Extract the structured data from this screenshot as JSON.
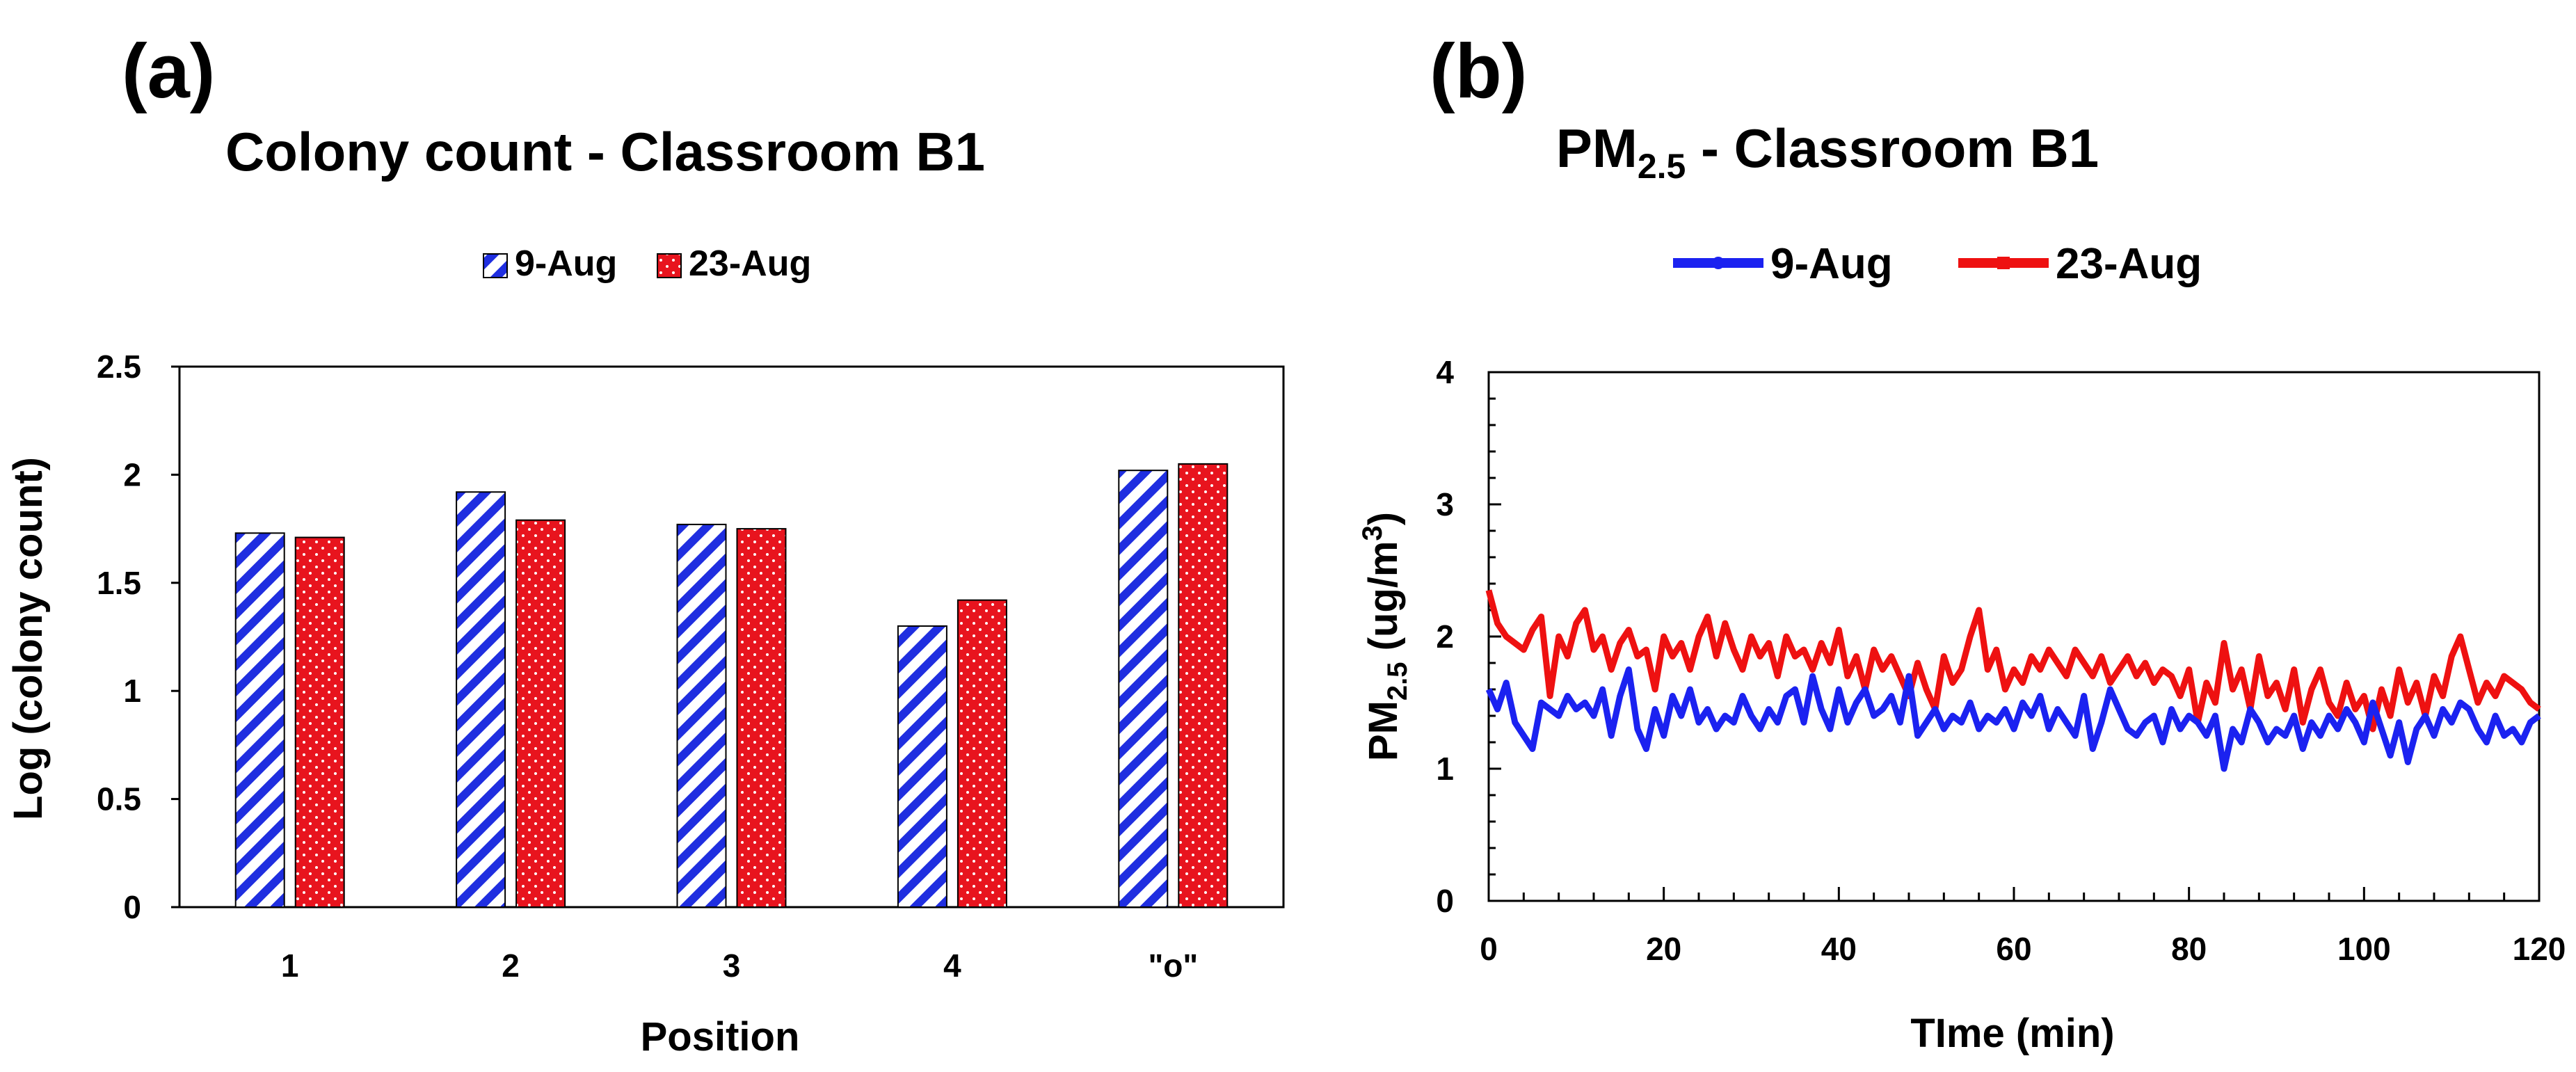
{
  "panels": {
    "a": {
      "label": "(a)",
      "chart_data": {
        "type": "bar",
        "title": "Colony count - Classroom B1",
        "xlabel": "Position",
        "ylabel": "Log (colony count)",
        "categories": [
          "1",
          "2",
          "3",
          "4",
          "\"o\""
        ],
        "ylim": [
          0,
          2.5
        ],
        "yticks": [
          "0",
          "0.5",
          "1",
          "1.5",
          "2",
          "2.5"
        ],
        "legend_position": "top-center",
        "series": [
          {
            "name": "9-Aug",
            "pattern": "blue-diagonal-stripes",
            "color": "#1f2ee0",
            "values": [
              1.73,
              1.92,
              1.77,
              1.3,
              2.02
            ]
          },
          {
            "name": "23-Aug",
            "pattern": "red-dotted",
            "color": "#e8141e",
            "values": [
              1.71,
              1.79,
              1.75,
              1.42,
              2.05
            ]
          }
        ]
      }
    },
    "b": {
      "label": "(b)",
      "chart_data": {
        "type": "line",
        "title_main": "PM",
        "title_sub": "2.5",
        "title_rest": " - Classroom B1",
        "xlabel": "TIme (min)",
        "ylabel_main": "PM",
        "ylabel_sub": "2.5",
        "ylabel_unit": " (ug/m",
        "ylabel_sup": "3",
        "ylabel_close": ")",
        "xlim": [
          0,
          120
        ],
        "ylim": [
          0,
          4
        ],
        "xticks": [
          "0",
          "20",
          "40",
          "60",
          "80",
          "100",
          "120"
        ],
        "yticks": [
          "0",
          "1",
          "2",
          "3",
          "4"
        ],
        "legend_position": "top-center",
        "series": [
          {
            "name": "9-Aug",
            "color": "#1b22f0",
            "x": [
              0,
              1,
              2,
              3,
              4,
              5,
              6,
              7,
              8,
              9,
              10,
              11,
              12,
              13,
              14,
              15,
              16,
              17,
              18,
              19,
              20,
              21,
              22,
              23,
              24,
              25,
              26,
              27,
              28,
              29,
              30,
              31,
              32,
              33,
              34,
              35,
              36,
              37,
              38,
              39,
              40,
              41,
              42,
              43,
              44,
              45,
              46,
              47,
              48,
              49,
              50,
              51,
              52,
              53,
              54,
              55,
              56,
              57,
              58,
              59,
              60,
              61,
              62,
              63,
              64,
              65,
              66,
              67,
              68,
              69,
              70,
              71,
              72,
              73,
              74,
              75,
              76,
              77,
              78,
              79,
              80,
              81,
              82,
              83,
              84,
              85,
              86,
              87,
              88,
              89,
              90,
              91,
              92,
              93,
              94,
              95,
              96,
              97,
              98,
              99,
              100,
              101,
              102,
              103,
              104,
              105,
              106,
              107,
              108,
              109,
              110,
              111,
              112,
              113,
              114,
              115,
              116,
              117,
              118,
              119,
              120
            ],
            "y": [
              1.6,
              1.45,
              1.65,
              1.35,
              1.25,
              1.15,
              1.5,
              1.45,
              1.4,
              1.55,
              1.45,
              1.5,
              1.4,
              1.6,
              1.25,
              1.55,
              1.75,
              1.3,
              1.15,
              1.45,
              1.25,
              1.55,
              1.4,
              1.6,
              1.35,
              1.45,
              1.3,
              1.4,
              1.35,
              1.55,
              1.4,
              1.3,
              1.45,
              1.35,
              1.55,
              1.6,
              1.35,
              1.7,
              1.45,
              1.3,
              1.6,
              1.35,
              1.5,
              1.6,
              1.4,
              1.45,
              1.55,
              1.35,
              1.7,
              1.25,
              1.35,
              1.45,
              1.3,
              1.4,
              1.35,
              1.5,
              1.3,
              1.4,
              1.35,
              1.45,
              1.3,
              1.5,
              1.4,
              1.55,
              1.3,
              1.45,
              1.35,
              1.25,
              1.55,
              1.15,
              1.35,
              1.6,
              1.45,
              1.3,
              1.25,
              1.35,
              1.4,
              1.2,
              1.45,
              1.3,
              1.4,
              1.35,
              1.25,
              1.4,
              1.0,
              1.3,
              1.2,
              1.45,
              1.35,
              1.2,
              1.3,
              1.25,
              1.4,
              1.15,
              1.35,
              1.25,
              1.4,
              1.3,
              1.45,
              1.35,
              1.2,
              1.5,
              1.3,
              1.1,
              1.35,
              1.05,
              1.3,
              1.4,
              1.25,
              1.45,
              1.35,
              1.5,
              1.45,
              1.3,
              1.2,
              1.4,
              1.25,
              1.3,
              1.2,
              1.35,
              1.4
            ]
          },
          {
            "name": "23-Aug",
            "color": "#ee1111",
            "x": [
              0,
              1,
              2,
              3,
              4,
              5,
              6,
              7,
              8,
              9,
              10,
              11,
              12,
              13,
              14,
              15,
              16,
              17,
              18,
              19,
              20,
              21,
              22,
              23,
              24,
              25,
              26,
              27,
              28,
              29,
              30,
              31,
              32,
              33,
              34,
              35,
              36,
              37,
              38,
              39,
              40,
              41,
              42,
              43,
              44,
              45,
              46,
              47,
              48,
              49,
              50,
              51,
              52,
              53,
              54,
              55,
              56,
              57,
              58,
              59,
              60,
              61,
              62,
              63,
              64,
              65,
              66,
              67,
              68,
              69,
              70,
              71,
              72,
              73,
              74,
              75,
              76,
              77,
              78,
              79,
              80,
              81,
              82,
              83,
              84,
              85,
              86,
              87,
              88,
              89,
              90,
              91,
              92,
              93,
              94,
              95,
              96,
              97,
              98,
              99,
              100,
              101,
              102,
              103,
              104,
              105,
              106,
              107,
              108,
              109,
              110,
              111,
              112,
              113,
              114,
              115,
              116,
              117,
              118,
              119,
              120
            ],
            "y": [
              2.35,
              2.1,
              2.0,
              1.95,
              1.9,
              2.05,
              2.15,
              1.55,
              2.0,
              1.85,
              2.1,
              2.2,
              1.9,
              2.0,
              1.75,
              1.95,
              2.05,
              1.85,
              1.9,
              1.6,
              2.0,
              1.85,
              1.95,
              1.75,
              2.0,
              2.15,
              1.85,
              2.1,
              1.9,
              1.75,
              2.0,
              1.85,
              1.95,
              1.7,
              2.0,
              1.85,
              1.9,
              1.75,
              1.95,
              1.8,
              2.05,
              1.7,
              1.85,
              1.6,
              1.9,
              1.75,
              1.85,
              1.7,
              1.55,
              1.8,
              1.6,
              1.45,
              1.85,
              1.65,
              1.75,
              2.0,
              2.2,
              1.75,
              1.9,
              1.6,
              1.75,
              1.65,
              1.85,
              1.75,
              1.9,
              1.8,
              1.7,
              1.9,
              1.8,
              1.7,
              1.85,
              1.65,
              1.75,
              1.85,
              1.7,
              1.8,
              1.65,
              1.75,
              1.7,
              1.55,
              1.75,
              1.35,
              1.65,
              1.5,
              1.95,
              1.6,
              1.75,
              1.45,
              1.85,
              1.55,
              1.65,
              1.45,
              1.75,
              1.35,
              1.6,
              1.75,
              1.5,
              1.4,
              1.65,
              1.45,
              1.55,
              1.3,
              1.6,
              1.4,
              1.75,
              1.5,
              1.65,
              1.4,
              1.7,
              1.55,
              1.85,
              2.0,
              1.75,
              1.5,
              1.65,
              1.55,
              1.7,
              1.65,
              1.6,
              1.5,
              1.45
            ]
          }
        ]
      }
    }
  }
}
